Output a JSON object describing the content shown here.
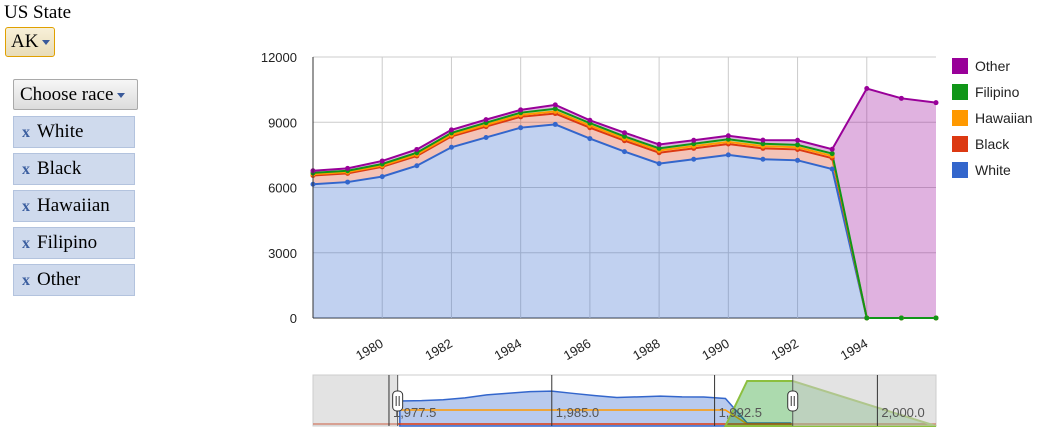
{
  "controls": {
    "state_label": "US State",
    "state_value": "AK",
    "race_placeholder": "Choose race",
    "chips": [
      "White",
      "Black",
      "Hawaiian",
      "Filipino",
      "Other"
    ],
    "remove_glyph": "x"
  },
  "range_selector": {
    "labels": [
      "1,977.5",
      "1,985.0",
      "1,992.5",
      "2,000.0"
    ]
  },
  "chart_data": {
    "type": "area",
    "stacked": true,
    "x": [
      1978,
      1979,
      1980,
      1981,
      1982,
      1983,
      1984,
      1985,
      1986,
      1987,
      1988,
      1989,
      1990,
      1991,
      1992,
      1993,
      1994,
      1995,
      1996
    ],
    "xticks": [
      1980,
      1982,
      1984,
      1986,
      1988,
      1990,
      1992,
      1994
    ],
    "ylim": [
      0,
      12000
    ],
    "yticks": [
      0,
      3000,
      6000,
      9000,
      12000
    ],
    "legend_position": "right",
    "series": [
      {
        "name": "White",
        "color": "#3366cc",
        "values": [
          6150,
          6250,
          6500,
          7000,
          7850,
          8300,
          8750,
          8900,
          8250,
          7650,
          7100,
          7300,
          7500,
          7300,
          7250,
          6850,
          0,
          0,
          0
        ]
      },
      {
        "name": "Black",
        "color": "#dc3912",
        "values": [
          400,
          400,
          450,
          450,
          500,
          500,
          500,
          500,
          500,
          500,
          500,
          500,
          500,
          500,
          500,
          500,
          0,
          0,
          0
        ]
      },
      {
        "name": "Hawaiian",
        "color": "#ff9900",
        "values": [
          60,
          60,
          60,
          70,
          70,
          80,
          90,
          100,
          100,
          100,
          100,
          100,
          100,
          100,
          100,
          100,
          0,
          0,
          0
        ]
      },
      {
        "name": "Filipino",
        "color": "#109618",
        "values": [
          60,
          60,
          70,
          80,
          90,
          100,
          100,
          120,
          110,
          100,
          100,
          110,
          120,
          110,
          110,
          110,
          0,
          0,
          0
        ]
      },
      {
        "name": "Other",
        "color": "#990099",
        "values": [
          100,
          110,
          140,
          150,
          140,
          140,
          130,
          180,
          130,
          170,
          180,
          160,
          160,
          170,
          210,
          200,
          10550,
          10100,
          9900
        ]
      }
    ]
  }
}
